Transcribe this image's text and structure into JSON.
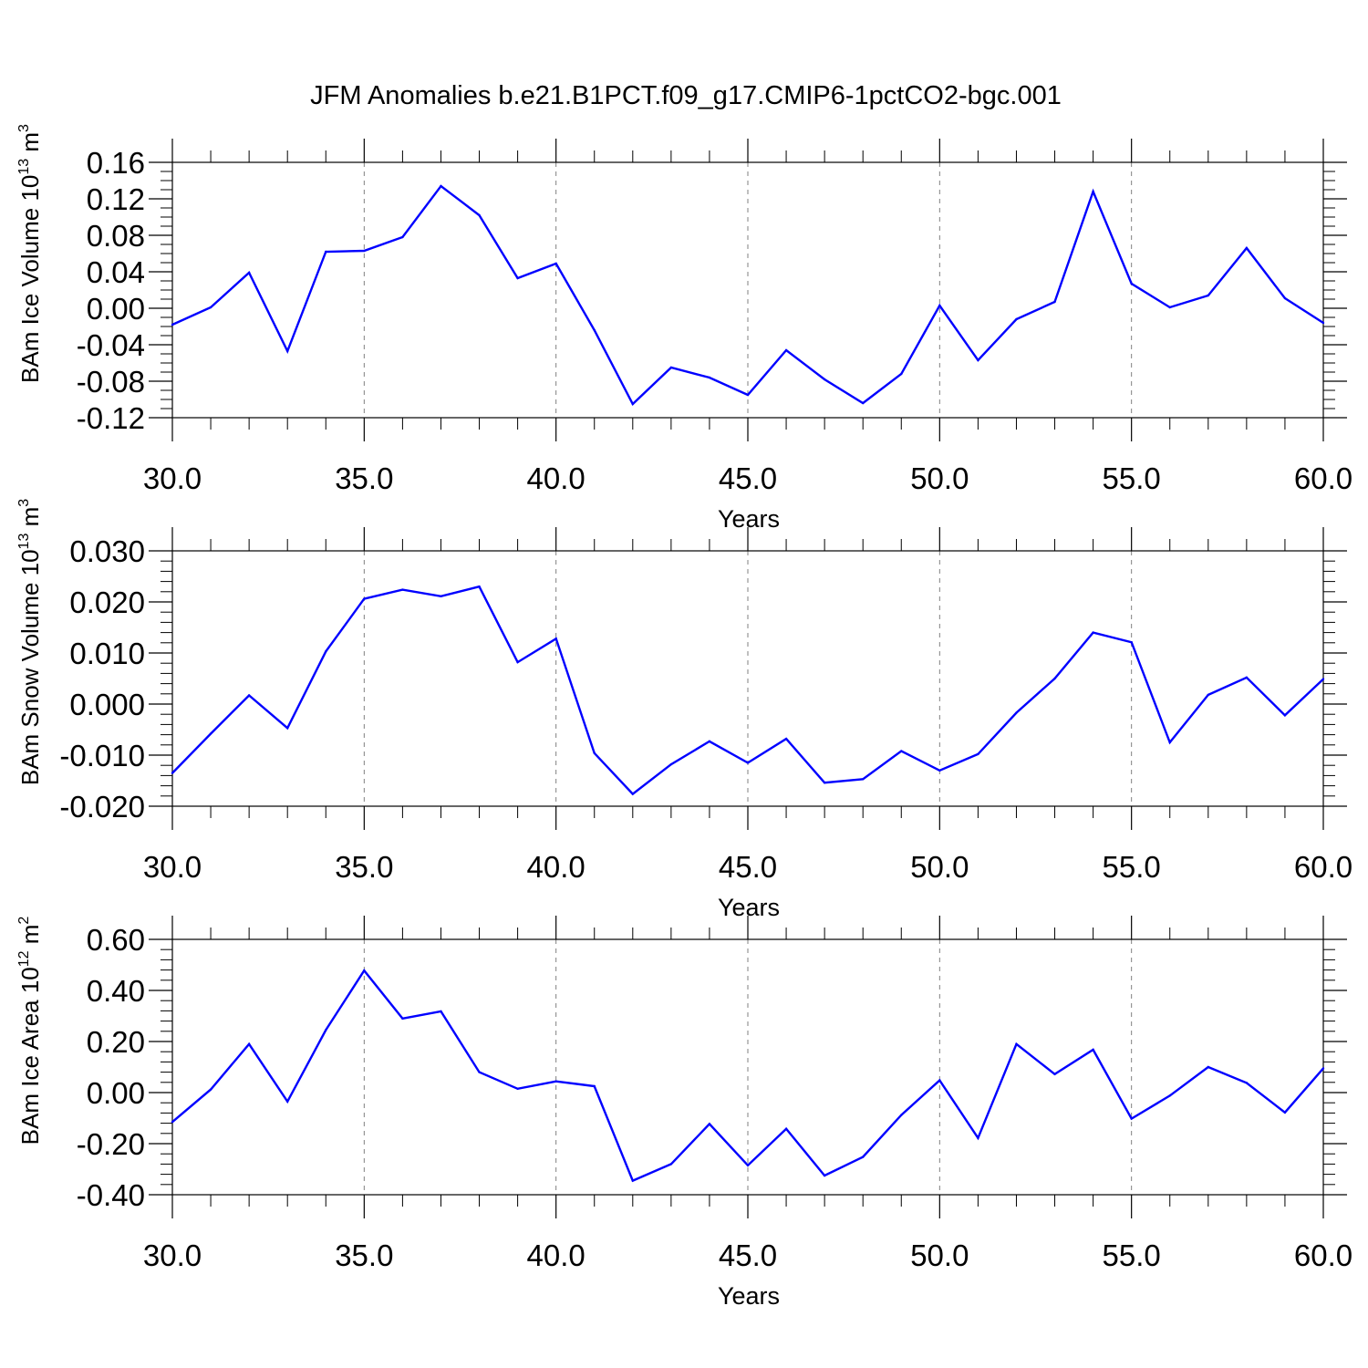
{
  "figure": {
    "title": "JFM Anomalies b.e21.B1PCT.f09_g17.CMIP6-1pctCO2-bgc.001"
  },
  "colors": {
    "series": "#0000ff",
    "axis": "#000000",
    "gridline": "#808080",
    "background": "#ffffff"
  },
  "chart_data": [
    {
      "type": "line",
      "ylabel": {
        "base": "BAm Ice Volume 10",
        "exp": "13",
        "unit": " m",
        "unit_exp": "3"
      },
      "xlabel": "Years",
      "xlim": [
        30,
        60
      ],
      "ylim": [
        -0.12,
        0.16
      ],
      "x_ticks": [
        30,
        35,
        40,
        45,
        50,
        55,
        60
      ],
      "x_tick_labels": [
        "30.0",
        "35.0",
        "40.0",
        "45.0",
        "50.0",
        "55.0",
        "60.0"
      ],
      "y_ticks": [
        -0.12,
        -0.08,
        -0.04,
        0.0,
        0.04,
        0.08,
        0.12,
        0.16
      ],
      "y_tick_labels": [
        "-0.12",
        "-0.08",
        "-0.04",
        "0.00",
        "0.04",
        "0.08",
        "0.12",
        "0.16"
      ],
      "y_minor_step": 0.01,
      "grid": "vertical dashed at major x ticks",
      "x": [
        30,
        31,
        32,
        33,
        34,
        35,
        36,
        37,
        38,
        39,
        40,
        41,
        42,
        43,
        44,
        45,
        46,
        47,
        48,
        49,
        50,
        51,
        52,
        53,
        54,
        55,
        56,
        57,
        58,
        59,
        60
      ],
      "values": [
        -0.018,
        0.001,
        0.039,
        -0.047,
        0.062,
        0.063,
        0.078,
        0.134,
        0.102,
        0.033,
        0.049,
        -0.024,
        -0.105,
        -0.065,
        -0.076,
        -0.095,
        -0.046,
        -0.078,
        -0.104,
        -0.072,
        0.003,
        -0.057,
        -0.012,
        0.007,
        0.128,
        0.027,
        0.001,
        0.014,
        0.066,
        0.011,
        -0.016
      ]
    },
    {
      "type": "line",
      "ylabel": {
        "base": "BAm Snow Volume 10",
        "exp": "13",
        "unit": " m",
        "unit_exp": "3"
      },
      "xlabel": "Years",
      "xlim": [
        30,
        60
      ],
      "ylim": [
        -0.02,
        0.03
      ],
      "x_ticks": [
        30,
        35,
        40,
        45,
        50,
        55,
        60
      ],
      "x_tick_labels": [
        "30.0",
        "35.0",
        "40.0",
        "45.0",
        "50.0",
        "55.0",
        "60.0"
      ],
      "y_ticks": [
        -0.02,
        -0.01,
        0.0,
        0.01,
        0.02,
        0.03
      ],
      "y_tick_labels": [
        "-0.020",
        "-0.010",
        "0.000",
        "0.010",
        "0.020",
        "0.030"
      ],
      "y_minor_step": 0.002,
      "grid": "vertical dashed at major x ticks",
      "x": [
        30,
        31,
        32,
        33,
        34,
        35,
        36,
        37,
        38,
        39,
        40,
        41,
        42,
        43,
        44,
        45,
        46,
        47,
        48,
        49,
        50,
        51,
        52,
        53,
        54,
        55,
        56,
        57,
        58,
        59,
        60
      ],
      "values": [
        -0.0135,
        -0.0058,
        0.0017,
        -0.0047,
        0.0103,
        0.0206,
        0.0224,
        0.0211,
        0.023,
        0.0082,
        0.0128,
        -0.0096,
        -0.0176,
        -0.0118,
        -0.0073,
        -0.0115,
        -0.0068,
        -0.0154,
        -0.0147,
        -0.0092,
        -0.013,
        -0.0098,
        -0.0017,
        0.005,
        0.014,
        0.0121,
        -0.0075,
        0.0018,
        0.0052,
        -0.0022,
        0.0049
      ]
    },
    {
      "type": "line",
      "ylabel": {
        "base": "BAm Ice Area 10",
        "exp": "12",
        "unit": " m",
        "unit_exp": "2"
      },
      "xlabel": "Years",
      "xlim": [
        30,
        60
      ],
      "ylim": [
        -0.4,
        0.6
      ],
      "x_ticks": [
        30,
        35,
        40,
        45,
        50,
        55,
        60
      ],
      "x_tick_labels": [
        "30.0",
        "35.0",
        "40.0",
        "45.0",
        "50.0",
        "55.0",
        "60.0"
      ],
      "y_ticks": [
        -0.4,
        -0.2,
        0.0,
        0.2,
        0.4,
        0.6
      ],
      "y_tick_labels": [
        "-0.40",
        "-0.20",
        "0.00",
        "0.20",
        "0.40",
        "0.60"
      ],
      "y_minor_step": 0.04,
      "grid": "vertical dashed at major x ticks",
      "x": [
        30,
        31,
        32,
        33,
        34,
        35,
        36,
        37,
        38,
        39,
        40,
        41,
        42,
        43,
        44,
        45,
        46,
        47,
        48,
        49,
        50,
        51,
        52,
        53,
        54,
        55,
        56,
        57,
        58,
        59,
        60
      ],
      "values": [
        -0.115,
        0.012,
        0.19,
        -0.035,
        0.245,
        0.478,
        0.29,
        0.318,
        0.08,
        0.015,
        0.044,
        0.025,
        -0.345,
        -0.28,
        -0.123,
        -0.285,
        -0.142,
        -0.325,
        -0.252,
        -0.088,
        0.048,
        -0.178,
        0.19,
        0.072,
        0.168,
        -0.102,
        -0.012,
        0.1,
        0.038,
        -0.078,
        0.095
      ]
    }
  ]
}
